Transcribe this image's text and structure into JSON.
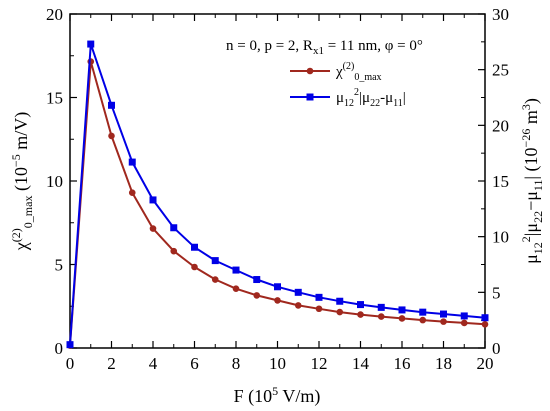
{
  "chart_data": {
    "type": "line",
    "annotation": "n = 0, p = 2, Rₓ₁ = 11 nm, φ = 0°",
    "annotation_parts": {
      "pre": "n = 0, p = 2, R",
      "sub": "x1",
      "post": " = 11 nm, φ = 0°"
    },
    "xlabel": "F (10⁵ V/m)",
    "xlabel_parts": {
      "pre": "F (10",
      "sup": "5",
      "post": " V/m)"
    },
    "ylabel": "χ⁽²⁾₀_max (10⁻⁵ m/V)",
    "ylabel_parts": {
      "pre": "χ",
      "sup": "(2)",
      "sub": "0_max",
      "post": " (10",
      "sup2": "−5",
      "post2": " m/V)"
    },
    "y2label": "μ₁₂²|μ₂₂−μ₁₁| (10⁻²⁶ m³)",
    "y2label_parts": {
      "pre": "μ",
      "sub1": "12",
      "sup1": "2",
      "mid": "|μ",
      "sub2": "22",
      "mid2": "−μ",
      "sub3": "11",
      "post": "| (10",
      "sup2": "−26",
      "post2": " m",
      "sup3": "3",
      "end": ")"
    },
    "xlim": [
      0,
      20
    ],
    "ylim": [
      0,
      20
    ],
    "y2lim": [
      0,
      30
    ],
    "x_ticks": [
      0,
      2,
      4,
      6,
      8,
      10,
      12,
      14,
      16,
      18,
      20
    ],
    "y_ticks": [
      0,
      5,
      10,
      15,
      20
    ],
    "y2_ticks": [
      0,
      5,
      10,
      15,
      20,
      25,
      30
    ],
    "legend_position": "top-right",
    "grid": false,
    "series": [
      {
        "name": "χ⁽²⁾₀_max",
        "name_parts": {
          "pre": "χ",
          "sup": "(2)",
          "sub": "0_max"
        },
        "axis": "left",
        "color": "#a0281e",
        "marker": "circle",
        "x": [
          0,
          1,
          2,
          3,
          4,
          5,
          6,
          7,
          8,
          9,
          10,
          11,
          12,
          13,
          14,
          15,
          16,
          17,
          18,
          19,
          20
        ],
        "values": [
          0.15,
          17.15,
          12.7,
          9.3,
          7.15,
          5.8,
          4.85,
          4.1,
          3.55,
          3.15,
          2.85,
          2.55,
          2.35,
          2.15,
          2.0,
          1.88,
          1.77,
          1.67,
          1.58,
          1.5,
          1.42
        ]
      },
      {
        "name": "μ₁₂²|μ₂₂-μ₁₁|",
        "name_parts": {
          "pre": "μ",
          "sub1": "12",
          "sup1": "2",
          "mid": "|μ",
          "sub2": "22",
          "mid2": "-μ",
          "sub3": "11",
          "post": "|"
        },
        "axis": "right",
        "color": "#0000e6",
        "marker": "square",
        "x": [
          0,
          1,
          2,
          3,
          4,
          5,
          6,
          7,
          8,
          9,
          10,
          11,
          12,
          13,
          14,
          15,
          16,
          17,
          18,
          19,
          20
        ],
        "values": [
          0.3,
          27.3,
          21.8,
          16.7,
          13.3,
          10.8,
          9.05,
          7.85,
          7.0,
          6.15,
          5.5,
          5.0,
          4.55,
          4.2,
          3.9,
          3.65,
          3.42,
          3.22,
          3.05,
          2.88,
          2.72
        ]
      }
    ]
  }
}
